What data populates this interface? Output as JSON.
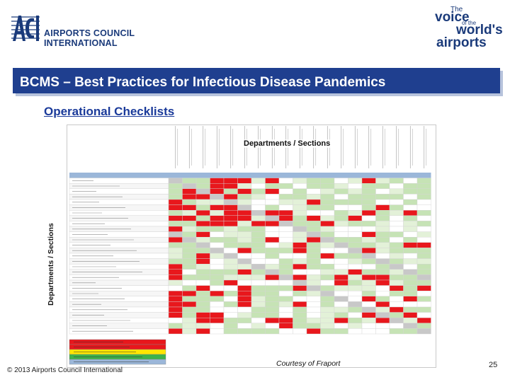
{
  "header": {
    "logo_letters": "ACI",
    "org_name_line1": "AIRPORTS COUNCIL",
    "org_name_line2": "INTERNATIONAL",
    "tagline": {
      "the": "The",
      "voice": "voice",
      "of_the": "of the",
      "worlds": "world's",
      "airports": "airports"
    }
  },
  "slide": {
    "title": "BCMS – Best Practices for Infectious Disease Pandemics",
    "subtitle": "Operational Checklists",
    "column_axis_label": "Departments / Sections",
    "row_axis_label": "Departments / Sections",
    "courtesy": "Courtesy of Fraport"
  },
  "footer": {
    "copyright": "© 2013 Airports Council International",
    "page_number": "25"
  },
  "colors": {
    "brand_blue": "#1f3f8f",
    "red": "#e8171c",
    "green": "#c6e3b5",
    "light_green": "#e3f1d8",
    "grey": "#c8c8c8",
    "header_blue": "#9bb7d9",
    "legend_yellow": "#ffe600",
    "legend_green": "#3db34a",
    "legend_blue": "#9bb7d9"
  }
}
